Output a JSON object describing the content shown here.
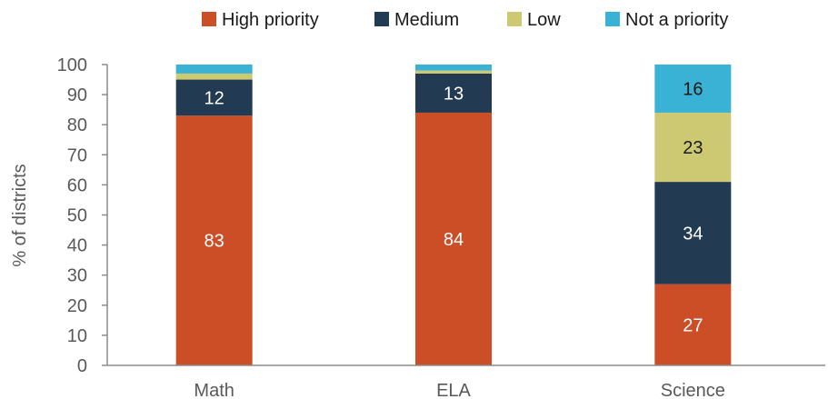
{
  "chart_data": {
    "type": "bar",
    "stacked": true,
    "categories": [
      "Math",
      "ELA",
      "Science"
    ],
    "series": [
      {
        "name": "High priority",
        "color": "#CC4E27",
        "values": [
          83,
          84,
          27
        ],
        "labels": [
          "83",
          "84",
          "27"
        ],
        "label_color": "#ffffff"
      },
      {
        "name": "Medium",
        "color": "#233A53",
        "values": [
          12,
          13,
          34
        ],
        "labels": [
          "12",
          "13",
          "34"
        ],
        "label_color": "#ffffff"
      },
      {
        "name": "Low",
        "color": "#CDC872",
        "values": [
          2,
          1,
          23
        ],
        "labels": [
          "",
          "",
          "23"
        ],
        "label_color": "#1a1a1a"
      },
      {
        "name": "Not a priority",
        "color": "#3AB2D6",
        "values": [
          3,
          2,
          16
        ],
        "labels": [
          "",
          "",
          "16"
        ],
        "label_color": "#1a1a1a"
      }
    ],
    "ylabel": "% of districts",
    "ylim": [
      0,
      100
    ],
    "yticks": [
      0,
      10,
      20,
      30,
      40,
      50,
      60,
      70,
      80,
      90,
      100
    ],
    "legend_position": "top",
    "grid": false
  }
}
